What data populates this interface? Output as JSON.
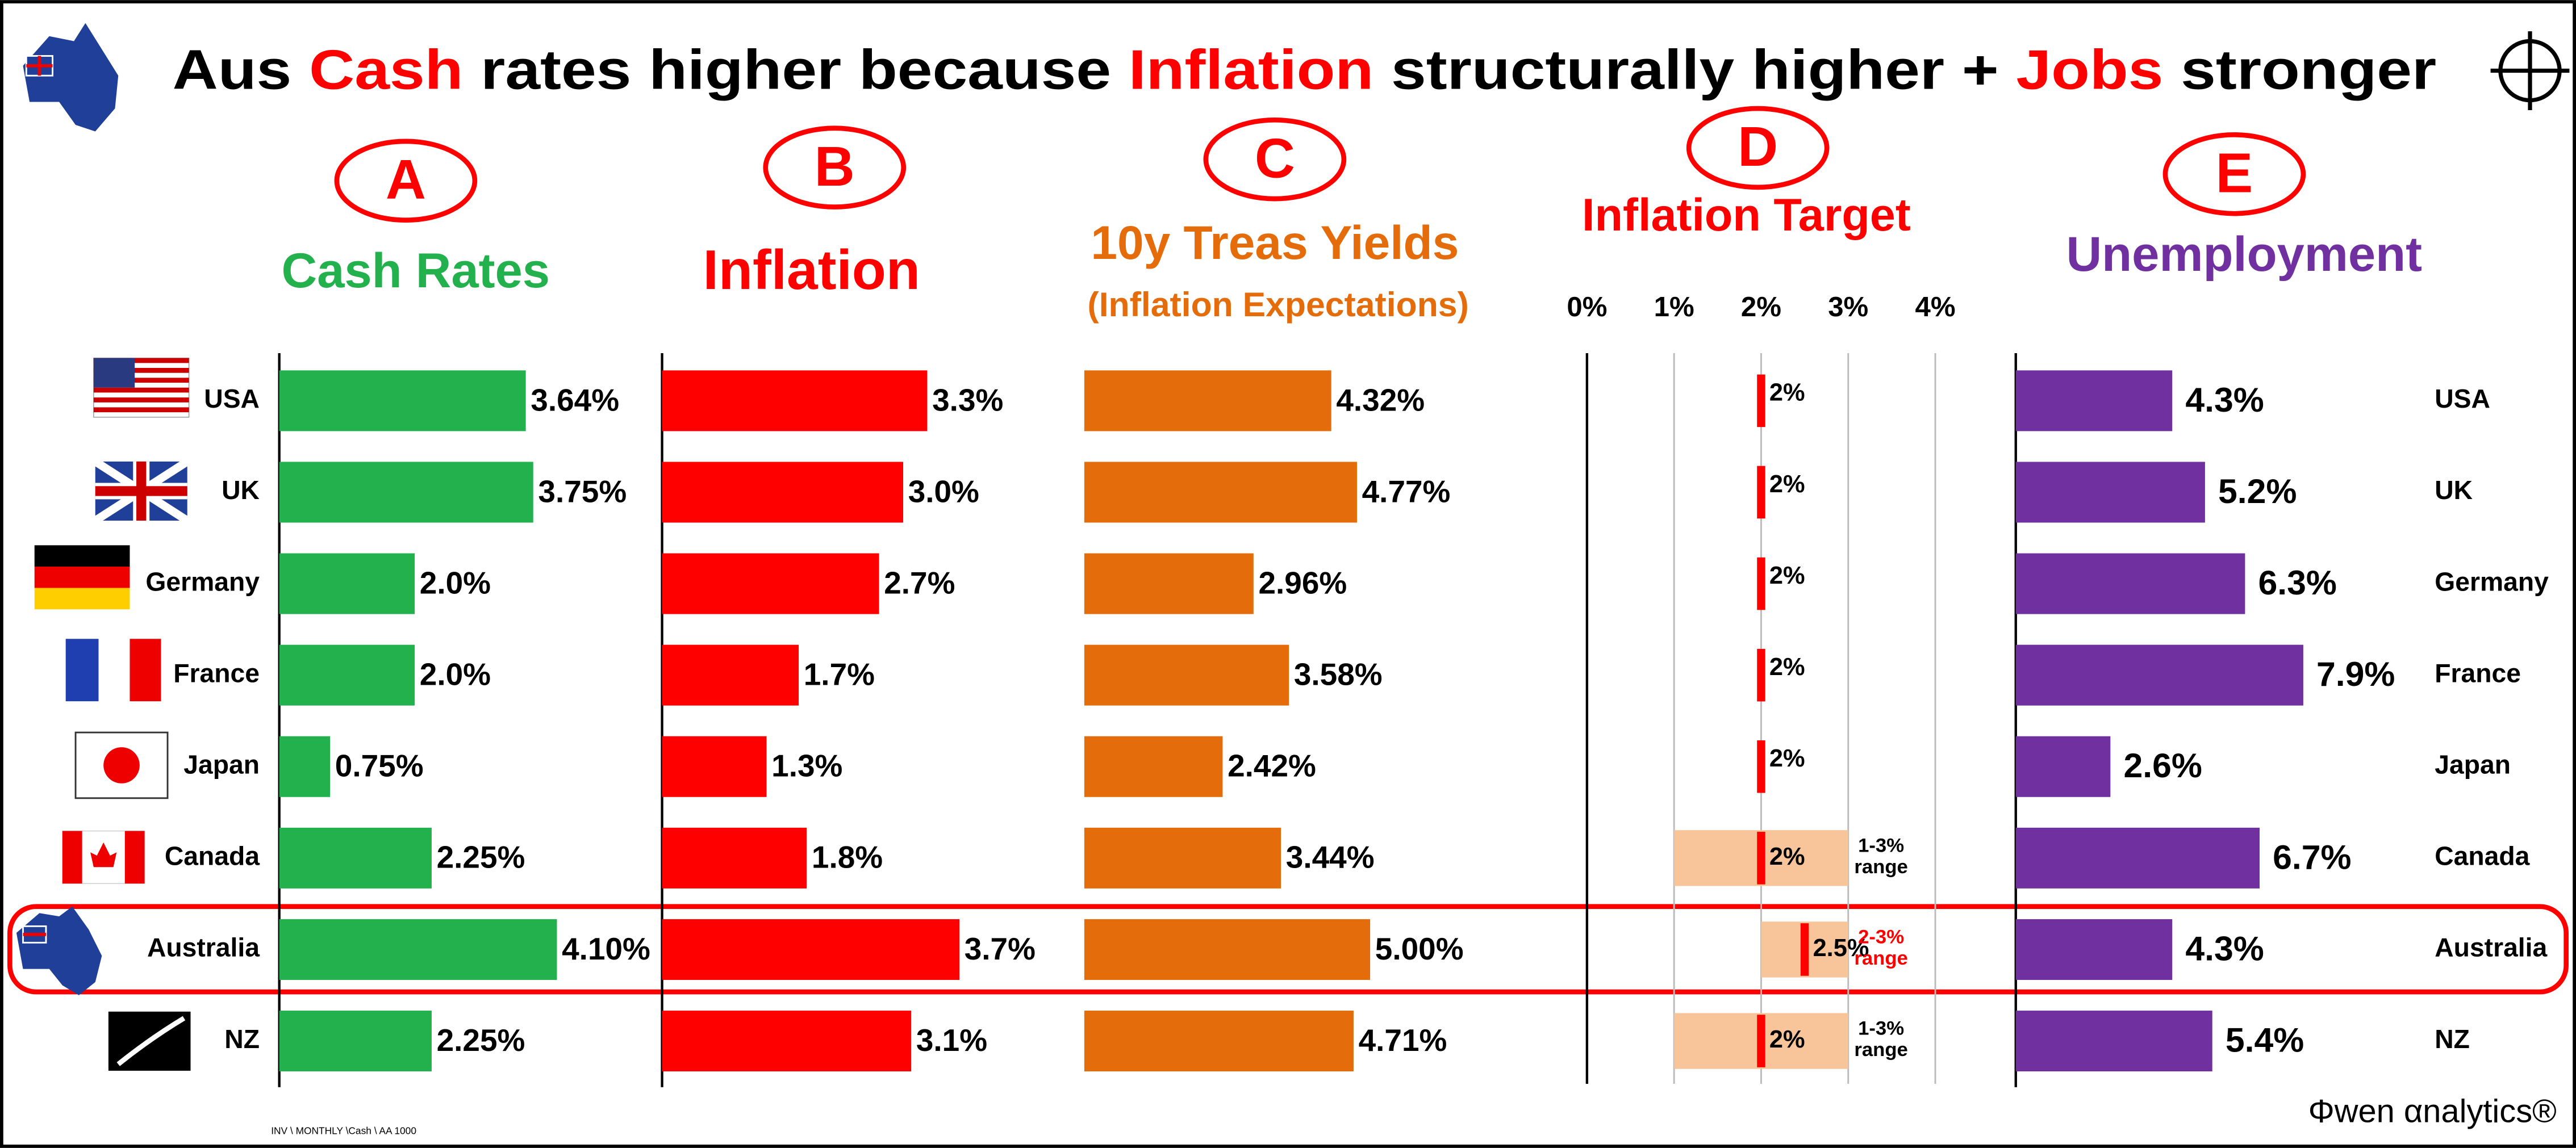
{
  "title": [
    {
      "text": "Aus ",
      "color": "#000000"
    },
    {
      "text": "Cash",
      "color": "#ff0000"
    },
    {
      "text": " rates higher because ",
      "color": "#000000"
    },
    {
      "text": "Inflation",
      "color": "#ff0000"
    },
    {
      "text": " structurally higher + ",
      "color": "#000000"
    },
    {
      "text": "Jobs",
      "color": "#ff0000"
    },
    {
      "text": " stronger",
      "color": "#000000"
    }
  ],
  "highlight": "Australia",
  "footnote": "INV \\ MONTHLY \\Cash \\ AA 1000",
  "brand": "Φwen αnalytics®",
  "chart_data": [
    {
      "type": "bar",
      "letter": "A",
      "title": "Cash Rates",
      "color": "#22b14c",
      "categories": [
        "USA",
        "UK",
        "Germany",
        "France",
        "Japan",
        "Canada",
        "Australia",
        "NZ"
      ],
      "values": [
        3.64,
        3.75,
        2.0,
        2.0,
        0.75,
        2.25,
        4.1,
        2.25
      ],
      "value_labels": [
        "3.64%",
        "3.75%",
        "2.0%",
        "2.0%",
        "0.75%",
        "2.25%",
        "4.10%",
        "2.25%"
      ]
    },
    {
      "type": "bar",
      "letter": "B",
      "title": "Inflation",
      "color": "#ff0000",
      "values": [
        3.3,
        3.0,
        2.7,
        1.7,
        1.3,
        1.8,
        3.7,
        3.1
      ],
      "value_labels": [
        "3.3%",
        "3.0%",
        "2.7%",
        "1.7%",
        "1.3%",
        "1.8%",
        "3.7%",
        "3.1%"
      ]
    },
    {
      "type": "bar",
      "letter": "C",
      "title": "10y Treas Yields",
      "subtitle": "(Inflation Expectations)",
      "color": "#e46c0a",
      "values": [
        4.32,
        4.77,
        2.96,
        3.58,
        2.42,
        3.44,
        5.0,
        4.71
      ],
      "value_labels": [
        "4.32%",
        "4.77%",
        "2.96%",
        "3.58%",
        "2.42%",
        "3.44%",
        "5.00%",
        "4.71%"
      ]
    },
    {
      "type": "target",
      "letter": "D",
      "title": "Inflation Target",
      "color": "#ff0000",
      "range_color": "#f8c49a",
      "xlim": [
        0,
        4
      ],
      "xticks": [
        {
          "value": 0,
          "label": "0%"
        },
        {
          "value": 1,
          "label": "1%"
        },
        {
          "value": 2,
          "label": "2%"
        },
        {
          "value": 3,
          "label": "3%"
        },
        {
          "value": 4,
          "label": "4%"
        }
      ],
      "grid": true,
      "values": [
        2,
        2,
        2,
        2,
        2,
        2,
        2.5,
        2
      ],
      "value_labels": [
        "2%",
        "2%",
        "2%",
        "2%",
        "2%",
        "2%",
        "2.5%",
        "2%"
      ],
      "ranges": [
        null,
        null,
        null,
        null,
        null,
        [
          1,
          3
        ],
        [
          2,
          3
        ],
        [
          1,
          3
        ]
      ],
      "range_labels": [
        null,
        null,
        null,
        null,
        null,
        [
          "1-3%",
          "range"
        ],
        [
          "2-3%",
          "range"
        ],
        [
          "1-3%",
          "range"
        ]
      ]
    },
    {
      "type": "bar",
      "letter": "E",
      "title": "Unemployment",
      "color": "#7030a0",
      "categories": [
        "USA",
        "UK",
        "Germany",
        "France",
        "Japan",
        "Canada",
        "Australia",
        "NZ"
      ],
      "values": [
        4.3,
        5.2,
        6.3,
        7.9,
        2.6,
        6.7,
        4.3,
        5.4
      ],
      "value_labels": [
        "4.3%",
        "5.2%",
        "6.3%",
        "7.9%",
        "2.6%",
        "6.7%",
        "4.3%",
        "5.4%"
      ]
    }
  ]
}
